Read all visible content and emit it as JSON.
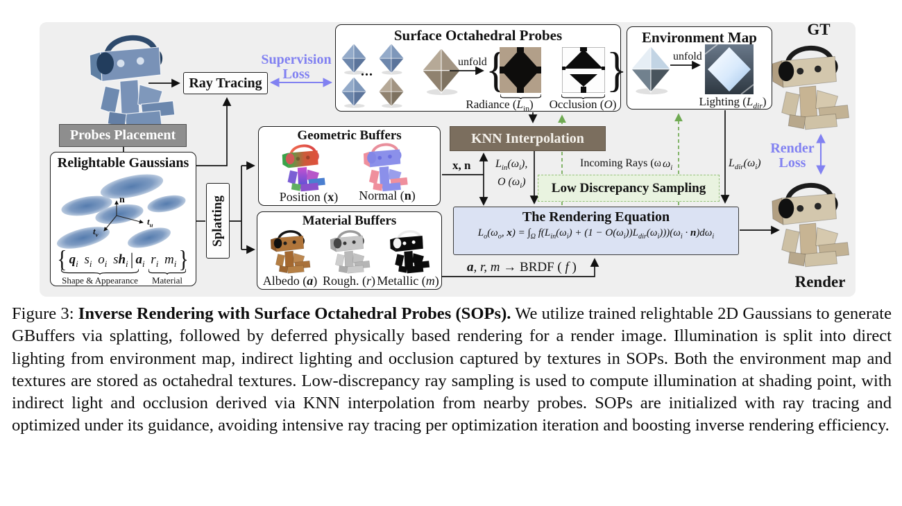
{
  "colors": {
    "figure_bg": "#efefef",
    "accent_purple": "#8181f1",
    "green_arrow": "#6faa52",
    "lds_fill": "#e9f3e0",
    "knn_brown": "#7b6e5e",
    "gray_box": "#8e8e8e",
    "equation_fill": "#dbe2f3"
  },
  "diagram": {
    "ray_tracing": {
      "label": "Ray Tracing"
    },
    "supervision_loss": {
      "line1": "Supervision",
      "line2": "Loss"
    },
    "probes_placement": {
      "label": "Probes Placement"
    },
    "relightable_gaussians": {
      "title": "Relightable Gaussians",
      "axes": {
        "n": "n",
        "t": "t",
        "u": "u",
        "v": "v"
      },
      "params": {
        "open": "{",
        "shape": "*q*_{i} s_{i} o_{i} s*h*_{i}",
        "sep": "|",
        "material": "*a*_{i} r_{i} m_{i}",
        "close": "}"
      },
      "brace_labels": {
        "shape": "Shape & Appearance",
        "material": "Material"
      }
    },
    "splatting": {
      "label": "Splatting"
    },
    "geometric_buffers": {
      "title": "Geometric Buffers",
      "position": {
        "pre": "Position (",
        "var": "x",
        "post": ")"
      },
      "normal": {
        "pre": "Normal (",
        "var": "n",
        "post": ")"
      }
    },
    "material_buffers": {
      "title": "Material Buffers",
      "albedo": {
        "pre": "Albedo (",
        "var": "a",
        "post": ")"
      },
      "rough": {
        "pre": "Rough. (",
        "var": "r",
        "post": ")"
      },
      "metallic": {
        "pre": "Metallic (",
        "var": "m",
        "post": ")"
      }
    },
    "sop": {
      "title": "Surface Octahedral Probes",
      "dots": "...",
      "unfold": "unfold",
      "brace_open": "{",
      "brace_close": "}",
      "radiance": {
        "pre": "Radiance (",
        "var": "L",
        "sub": "in",
        "post": ")"
      },
      "occlusion": {
        "pre": "Occlusion (",
        "var": "O",
        "sub": "",
        "post": ")"
      }
    },
    "env_map": {
      "title": "Environment Map",
      "unfold": "unfold",
      "lighting": {
        "pre": "Lighting (",
        "var": "L",
        "sub": "dir",
        "post": ")"
      }
    },
    "knn": {
      "label": "KNN Interpolation"
    },
    "lds": {
      "label": "Low Discrepancy Sampling"
    },
    "rendering_equation": {
      "title": "The Rendering Equation",
      "equation": "L_{o}(ω_{o}, *x*) = ∫_{Ω} f(L_{in}(ω_{i}) + (1 − O(ω_{i}))L_{dir}(ω_{i})))(ω_{i} · *n*)dω_{i}"
    },
    "flow_labels": {
      "xn": "x, n",
      "lin": "L_{in}(ω_{i}),",
      "occ": "O (ω_{i})",
      "incoming_rays": "Incoming Rays (ω_{i})",
      "omega": "ω_{i}",
      "ldir": "L_{dir}(ω_{i})",
      "brdf": {
        "a": "a",
        "rm": ", r, m",
        "mid": " → BRDF ( ",
        "f": "f",
        "close": " )"
      }
    },
    "gt_label": "GT",
    "render_label": "Render",
    "render_loss": {
      "line1": "Render",
      "line2": "Loss"
    }
  },
  "caption": {
    "figure_label": "Figure 3: ",
    "bold_title": "Inverse Rendering with Surface Octahedral Probes (SOPs).",
    "body": " We utilize trained relightable 2D Gaussians to generate GBuffers via splatting, followed by deferred physically based rendering for a render image. Illumination is split into direct lighting from environment map, indirect lighting and occlusion captured by textures in SOPs. Both the environment map and textures are stored as octahedral textures. Low-discrepancy ray sampling is used to compute illumination at shading point, with indirect light and occlusion derived via KNN interpolation from nearby probes. SOPs are initialized with ray tracing and optimized under its guidance, avoiding intensive ray tracing per optimization iteration and boosting inverse rendering efficiency."
  }
}
